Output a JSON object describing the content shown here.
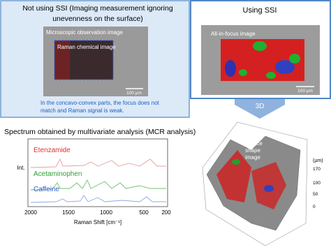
{
  "left_panel": {
    "title_lines": [
      "Not using SSI (Imaging measurement ignoring",
      "unevenness on the surface)"
    ],
    "image_label": "Microscopic observation image",
    "raman_label": "Raman chemical image",
    "scale_bar": "100 µm",
    "caption_lines": [
      "In the concavo-convex parts, the focus does not",
      "match and Raman signal is weak."
    ]
  },
  "right_panel": {
    "title": "Using SSI",
    "image_label": "All-in-focus image",
    "scale_bar": "100 µm"
  },
  "arrow_label": "3D",
  "spectrum": {
    "title": "Spectrum obtained by multivariate analysis (MCR analysis)",
    "y_label": "Int.",
    "x_label": "Raman Shift [cm⁻¹]",
    "x_ticks": [
      "2000",
      "1500",
      "1000",
      "500",
      "200"
    ],
    "components": [
      "Etenzamide",
      "Acetaminophen",
      "Caffeine"
    ]
  },
  "surface_plot": {
    "label_lines": [
      "Surface",
      "shape",
      "image"
    ],
    "z_unit": "(µm)",
    "z_ticks": [
      "170",
      "100",
      "50",
      "0"
    ]
  }
}
